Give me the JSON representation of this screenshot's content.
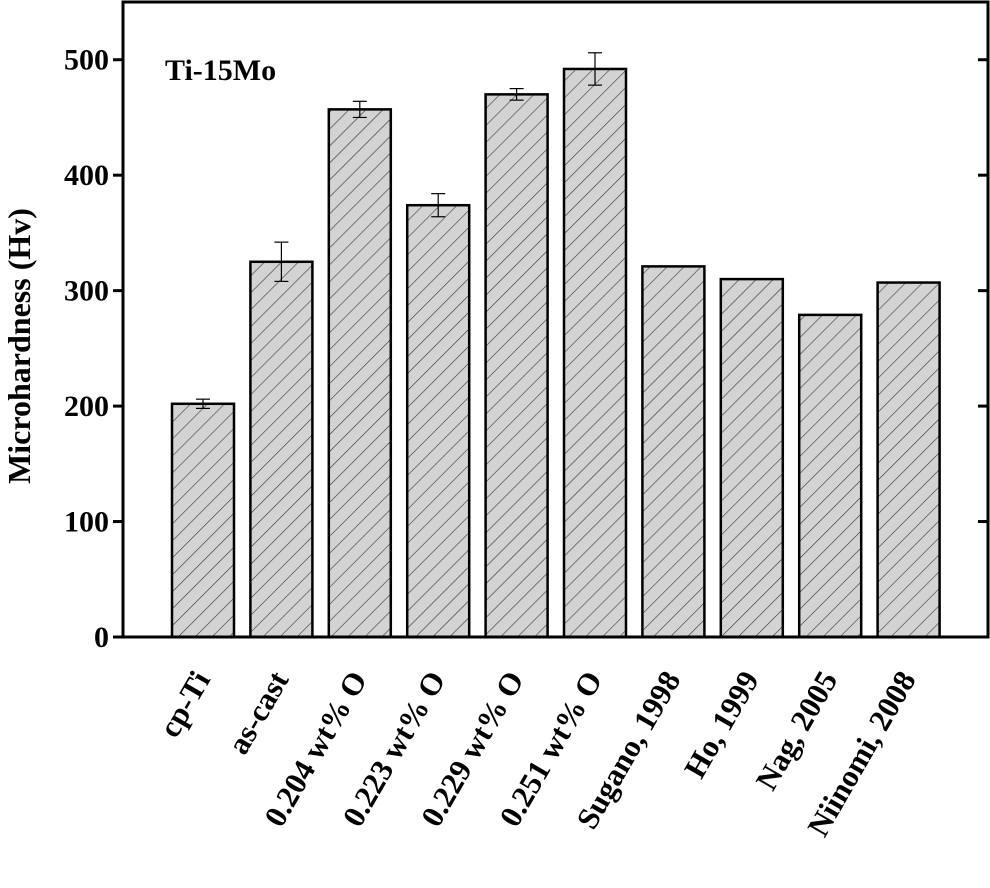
{
  "chart_data": {
    "type": "bar",
    "title": "Ti-15Mo",
    "y_label": "Microhardness (Hv)",
    "categories": [
      "cp-Ti",
      "as-cast",
      "0.204 wt% O",
      "0.223 wt% O",
      "0.229 wt% O",
      "0.251 wt% O",
      "Sugano, 1998",
      "Ho, 1999",
      "Nag, 2005",
      "Niinomi, 2008"
    ],
    "values": [
      202,
      325,
      457,
      374,
      470,
      492,
      321,
      310,
      279,
      307
    ],
    "errors": [
      4,
      17,
      7,
      10,
      5,
      14,
      null,
      null,
      null,
      null
    ],
    "color": "#d3d3d3",
    "ylim": [
      0,
      550
    ],
    "yticks": [
      0,
      100,
      200,
      300,
      400,
      500
    ]
  }
}
